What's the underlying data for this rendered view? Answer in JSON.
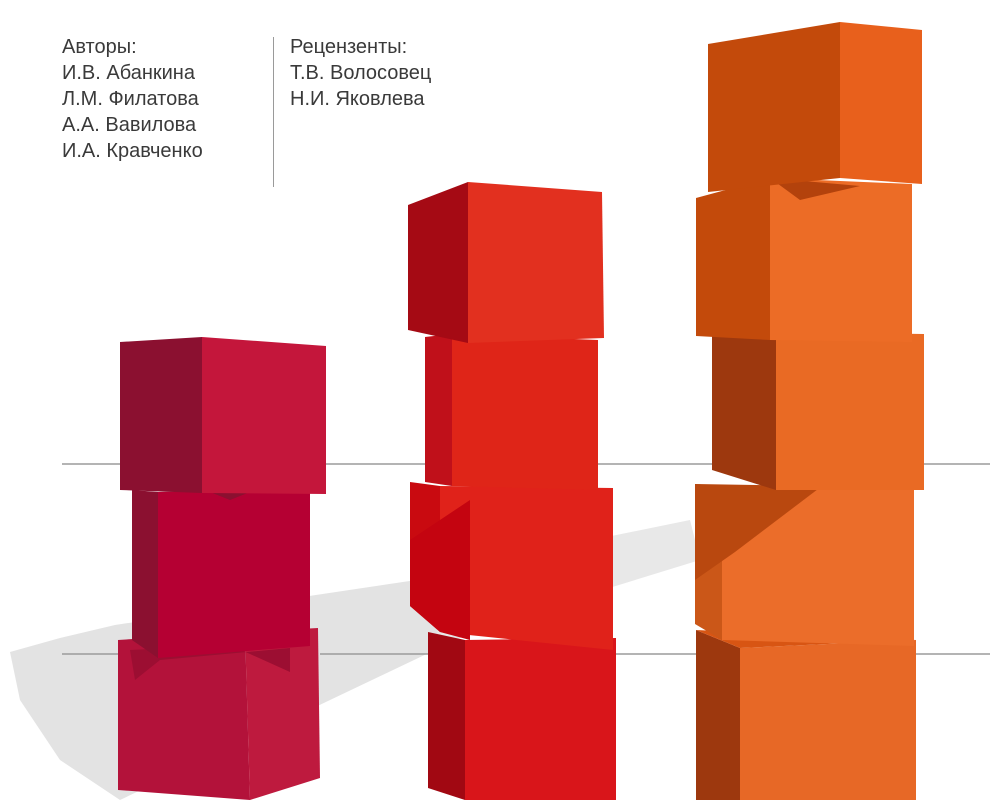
{
  "authors": {
    "heading": "Авторы:",
    "names": [
      "И.В. Абанкина",
      "Л.М. Филатова",
      "А.А. Вавилова",
      "И.А. Кравченко"
    ]
  },
  "reviewers": {
    "heading": "Рецензенты:",
    "names": [
      "Т.В. Волосовец",
      "Н.И. Яковлева"
    ]
  },
  "colors": {
    "crimson_front": "#c4163b",
    "crimson_side": "#8b1030",
    "red_front": "#e2301f",
    "red_side": "#a50a14",
    "orange_front": "#ec6c26",
    "orange_side": "#c4480f",
    "shadow": "#e2e2e2",
    "guide_line": "#9b9b9b"
  }
}
